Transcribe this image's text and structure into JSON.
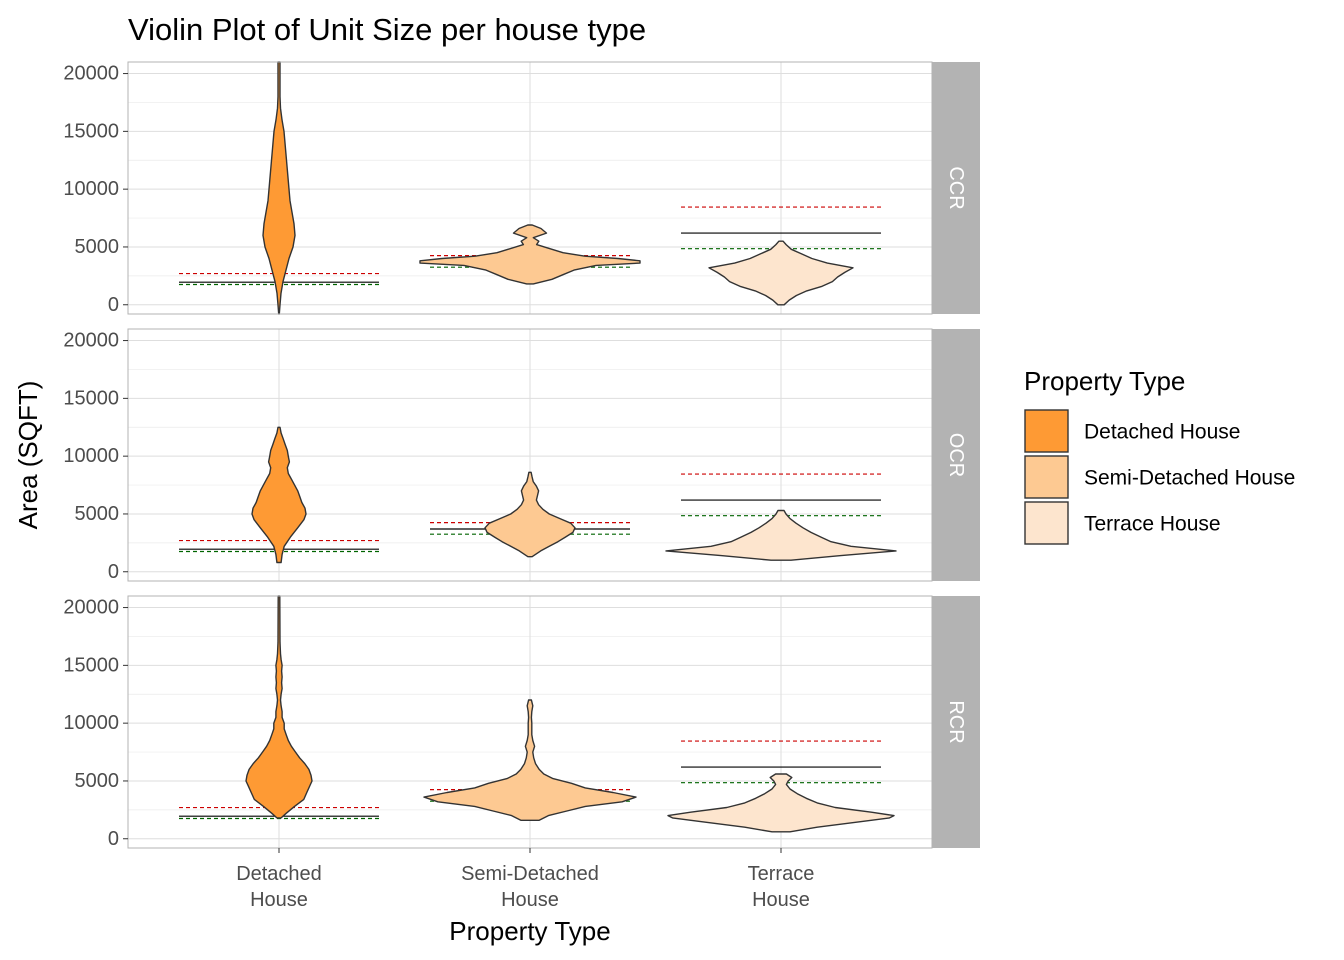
{
  "chart_data": {
    "type": "violin",
    "title": "Violin Plot of Unit Size per house type",
    "xlabel": "Property Type",
    "ylabel": "Area (SQFT)",
    "categories": [
      "Detached House",
      "Semi-Detached House",
      "Terrace House"
    ],
    "category_tick_lines": [
      [
        "Detached",
        "House"
      ],
      [
        "Semi-Detached",
        "House"
      ],
      [
        "Terrace",
        "House"
      ]
    ],
    "ylim": [
      -800,
      21000
    ],
    "yticks": [
      0,
      5000,
      10000,
      15000,
      20000
    ],
    "grid": true,
    "legend": {
      "title": "Property Type",
      "position": "right",
      "entries": [
        "Detached House",
        "Semi-Detached House",
        "Terrace House"
      ]
    },
    "colors": {
      "Detached House": "#fe9a34",
      "Semi-Detached House": "#fdc992",
      "Terrace House": "#fde5ce",
      "outline": "#333333",
      "strip": "#b3b3b3",
      "mean_line": "#000000",
      "upper_dashed": "#cc0000",
      "lower_dashed": "#006400"
    },
    "reference_lines": {
      "Detached House": {
        "solid": 1950,
        "red_dashed": 2700,
        "green_dashed": 1750
      },
      "Semi-Detached House": {
        "solid": 3700,
        "red_dashed": 4250,
        "green_dashed": 3250
      },
      "Terrace House": {
        "solid": 6200,
        "red_dashed": 8450,
        "green_dashed": 4850
      }
    },
    "panels": [
      {
        "region": "CCR",
        "violins": [
          {
            "category": "Detached House",
            "profile": [
              [
                -800,
                0.3
              ],
              [
                0,
                1
              ],
              [
                1000,
                2
              ],
              [
                2000,
                4
              ],
              [
                3000,
                7
              ],
              [
                4000,
                10
              ],
              [
                5000,
                14
              ],
              [
                6000,
                16
              ],
              [
                7000,
                15
              ],
              [
                8000,
                13
              ],
              [
                9000,
                11
              ],
              [
                10000,
                10
              ],
              [
                11000,
                9
              ],
              [
                12000,
                8
              ],
              [
                13000,
                7
              ],
              [
                14000,
                6
              ],
              [
                15000,
                5
              ],
              [
                16000,
                3
              ],
              [
                17000,
                1.5
              ],
              [
                18000,
                1
              ],
              [
                21000,
                1
              ]
            ]
          },
          {
            "category": "Semi-Detached House",
            "profile": [
              [
                1800,
                3
              ],
              [
                2200,
                20
              ],
              [
                2600,
                30
              ],
              [
                3000,
                40
              ],
              [
                3400,
                60
              ],
              [
                3600,
                100
              ],
              [
                3800,
                100
              ],
              [
                4000,
                80
              ],
              [
                4200,
                50
              ],
              [
                4500,
                30
              ],
              [
                4800,
                20
              ],
              [
                5200,
                6
              ],
              [
                5500,
                8
              ],
              [
                5800,
                3
              ],
              [
                6200,
                15
              ],
              [
                6600,
                10
              ],
              [
                6900,
                2
              ]
            ]
          },
          {
            "category": "Terrace House",
            "profile": [
              [
                0,
                3
              ],
              [
                400,
                8
              ],
              [
                800,
                15
              ],
              [
                1200,
                25
              ],
              [
                1600,
                40
              ],
              [
                2000,
                50
              ],
              [
                2400,
                55
              ],
              [
                2800,
                62
              ],
              [
                3200,
                70
              ],
              [
                3600,
                45
              ],
              [
                4000,
                30
              ],
              [
                4400,
                20
              ],
              [
                4800,
                10
              ],
              [
                5200,
                5
              ],
              [
                5500,
                2
              ]
            ]
          }
        ]
      },
      {
        "region": "OCR",
        "violins": [
          {
            "category": "Detached House",
            "profile": [
              [
                800,
                2
              ],
              [
                1500,
                3
              ],
              [
                2200,
                5
              ],
              [
                3000,
                11
              ],
              [
                3800,
                18
              ],
              [
                4500,
                24
              ],
              [
                5000,
                26
              ],
              [
                5500,
                25
              ],
              [
                6000,
                22
              ],
              [
                6500,
                20
              ],
              [
                7000,
                18
              ],
              [
                7500,
                15
              ],
              [
                8000,
                12
              ],
              [
                8500,
                9
              ],
              [
                9000,
                8
              ],
              [
                9500,
                10
              ],
              [
                10000,
                9
              ],
              [
                10500,
                8
              ],
              [
                11000,
                6
              ],
              [
                11500,
                4
              ],
              [
                12000,
                2
              ],
              [
                12500,
                1
              ]
            ]
          },
          {
            "category": "Semi-Detached House",
            "profile": [
              [
                1300,
                2
              ],
              [
                1800,
                10
              ],
              [
                2200,
                18
              ],
              [
                2600,
                26
              ],
              [
                3000,
                33
              ],
              [
                3400,
                40
              ],
              [
                3800,
                42
              ],
              [
                4200,
                38
              ],
              [
                4600,
                28
              ],
              [
                5000,
                18
              ],
              [
                5400,
                12
              ],
              [
                5800,
                8
              ],
              [
                6200,
                6
              ],
              [
                6600,
                7
              ],
              [
                7000,
                8
              ],
              [
                7400,
                6
              ],
              [
                7800,
                3
              ],
              [
                8200,
                2
              ],
              [
                8600,
                1
              ]
            ]
          },
          {
            "category": "Terrace House",
            "profile": [
              [
                1000,
                10
              ],
              [
                1400,
                60
              ],
              [
                1800,
                115
              ],
              [
                2200,
                70
              ],
              [
                2600,
                50
              ],
              [
                3000,
                40
              ],
              [
                3400,
                30
              ],
              [
                3800,
                22
              ],
              [
                4200,
                15
              ],
              [
                4600,
                9
              ],
              [
                5000,
                5
              ],
              [
                5300,
                3
              ]
            ]
          }
        ]
      },
      {
        "region": "RCR",
        "violins": [
          {
            "category": "Detached House",
            "profile": [
              [
                1800,
                2
              ],
              [
                2200,
                7
              ],
              [
                2800,
                15
              ],
              [
                3400,
                24
              ],
              [
                4000,
                27
              ],
              [
                4600,
                30
              ],
              [
                5000,
                32
              ],
              [
                5500,
                31
              ],
              [
                6000,
                29
              ],
              [
                6500,
                25
              ],
              [
                7000,
                20
              ],
              [
                7500,
                16
              ],
              [
                8000,
                12
              ],
              [
                8500,
                9
              ],
              [
                9000,
                7
              ],
              [
                9500,
                5
              ],
              [
                10000,
                5
              ],
              [
                10500,
                3
              ],
              [
                11000,
                3
              ],
              [
                11500,
                2
              ],
              [
                12000,
                1.5
              ],
              [
                12500,
                2
              ],
              [
                13000,
                3
              ],
              [
                13500,
                2.5
              ],
              [
                14000,
                3
              ],
              [
                14500,
                2.5
              ],
              [
                15000,
                3
              ],
              [
                15500,
                2
              ],
              [
                16000,
                1.5
              ],
              [
                17000,
                1
              ],
              [
                21000,
                0.8
              ]
            ]
          },
          {
            "category": "Semi-Detached House",
            "profile": [
              [
                1600,
                10
              ],
              [
                2000,
                20
              ],
              [
                2400,
                40
              ],
              [
                2800,
                60
              ],
              [
                3200,
                100
              ],
              [
                3600,
                115
              ],
              [
                4000,
                90
              ],
              [
                4400,
                60
              ],
              [
                4800,
                45
              ],
              [
                5200,
                25
              ],
              [
                5600,
                15
              ],
              [
                6000,
                10
              ],
              [
                6500,
                6
              ],
              [
                7000,
                4
              ],
              [
                7500,
                3
              ],
              [
                8000,
                5
              ],
              [
                8500,
                3
              ],
              [
                9000,
                2
              ],
              [
                9500,
                2
              ],
              [
                10000,
                2
              ],
              [
                10500,
                1.5
              ],
              [
                11000,
                2
              ],
              [
                11500,
                3
              ],
              [
                12000,
                1.5
              ]
            ]
          },
          {
            "category": "Terrace House",
            "profile": [
              [
                600,
                10
              ],
              [
                1000,
                40
              ],
              [
                1500,
                90
              ],
              [
                1800,
                120
              ],
              [
                2000,
                125
              ],
              [
                2300,
                100
              ],
              [
                2700,
                60
              ],
              [
                3100,
                40
              ],
              [
                3500,
                28
              ],
              [
                3900,
                18
              ],
              [
                4300,
                10
              ],
              [
                4700,
                6
              ],
              [
                5000,
                8
              ],
              [
                5300,
                12
              ],
              [
                5600,
                6
              ]
            ]
          }
        ]
      }
    ]
  }
}
